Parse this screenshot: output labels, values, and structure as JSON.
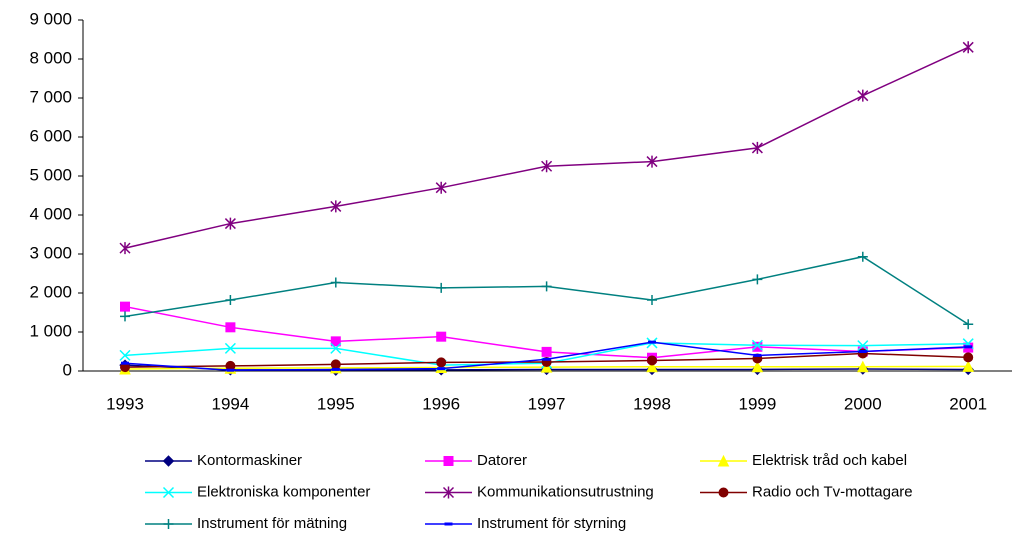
{
  "chart_data": {
    "type": "line",
    "categories": [
      "1993",
      "1994",
      "1995",
      "1996",
      "1997",
      "1998",
      "1999",
      "2000",
      "2001"
    ],
    "ylim": [
      0,
      9000
    ],
    "yticks": [
      0,
      {
        "value": 1000,
        "label": "1 000"
      },
      {
        "value": 2000,
        "label": "2 000"
      },
      {
        "value": 3000,
        "label": "3 000"
      },
      {
        "value": 4000,
        "label": "4 000"
      },
      {
        "value": 5000,
        "label": "5 000"
      },
      {
        "value": 6000,
        "label": "6 000"
      },
      {
        "value": 7000,
        "label": "7 000"
      },
      {
        "value": 8000,
        "label": "8 000"
      },
      {
        "value": 9000,
        "label": "9 000"
      }
    ],
    "grid": false,
    "series": [
      {
        "name": "Kontormaskiner",
        "color": "#000080",
        "marker": "diamond",
        "values": [
          150,
          30,
          20,
          30,
          40,
          40,
          40,
          50,
          40
        ]
      },
      {
        "name": "Datorer",
        "color": "#ff00ff",
        "marker": "square",
        "values": [
          1650,
          1120,
          760,
          880,
          490,
          340,
          620,
          500,
          600
        ]
      },
      {
        "name": "Elektrisk tråd och kabel",
        "color": "#ffff00",
        "marker": "triangle",
        "values": [
          50,
          70,
          80,
          90,
          100,
          110,
          110,
          110,
          120
        ]
      },
      {
        "name": "Elektroniska komponenter",
        "color": "#00ffff",
        "marker": "x",
        "values": [
          400,
          580,
          580,
          150,
          200,
          720,
          660,
          650,
          700
        ]
      },
      {
        "name": "Kommunikationsutrustning",
        "color": "#800080",
        "marker": "star",
        "values": [
          3150,
          3780,
          4220,
          4700,
          5250,
          5370,
          5720,
          7060,
          8300
        ]
      },
      {
        "name": "Radio och Tv-mottagare",
        "color": "#800000",
        "marker": "circle",
        "values": [
          100,
          130,
          170,
          220,
          230,
          270,
          320,
          450,
          350
        ]
      },
      {
        "name": "Instrument för mätning",
        "color": "#008080",
        "marker": "plus",
        "values": [
          1400,
          1820,
          2270,
          2130,
          2170,
          1820,
          2350,
          2930,
          1200
        ]
      },
      {
        "name": "Instrument för styrning",
        "color": "#0000ff",
        "marker": "dash",
        "values": [
          200,
          20,
          40,
          60,
          300,
          740,
          400,
          500,
          620
        ]
      }
    ]
  }
}
